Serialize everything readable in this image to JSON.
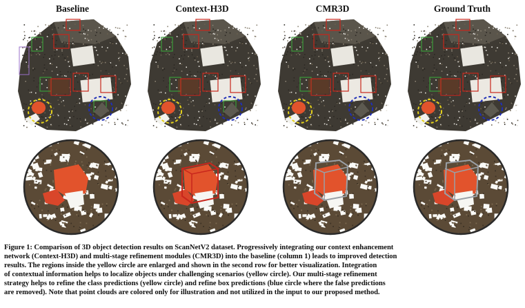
{
  "figure": {
    "columns": [
      {
        "title": "Baseline",
        "zoom_box": "none",
        "blue_box": true
      },
      {
        "title": "Context-H3D",
        "zoom_box": "red",
        "blue_box": true
      },
      {
        "title": "CMR3D",
        "zoom_box": "gray",
        "blue_box": false
      },
      {
        "title": "Ground Truth",
        "zoom_box": "gray",
        "blue_box": false
      }
    ],
    "caption_lines": [
      "Figure 1: Comparison of 3D object detection results on ScanNetV2 dataset. Progressively integrating our context enhancement",
      "network (Context-H3D) and multi-stage refinement modules (CMR3D) into the baseline (column 1) leads to improved detection",
      "results. The regions inside the yellow circle are enlarged and shown in the second row for better visualization. Integration",
      "of contextual information helps to localize objects under challenging scenarios (yellow circle). Our multi-stage refinement",
      "strategy helps to refine the class predictions (yellow circle) and refine box predictions (blue circle where the false predictions",
      "are removed). Note that point clouds are colored only for illustration and not utilized in the input to our proposed method."
    ],
    "colors": {
      "yellow_circle": "#e6d21a",
      "blue_circle": "#1f2fb8",
      "object_red": "#e2532c",
      "pred_red_box": "#c8261c",
      "gt_gray_box": "#9aa0a6",
      "green_box": "#3a9a3a",
      "purple_box": "#9a70c8"
    }
  }
}
